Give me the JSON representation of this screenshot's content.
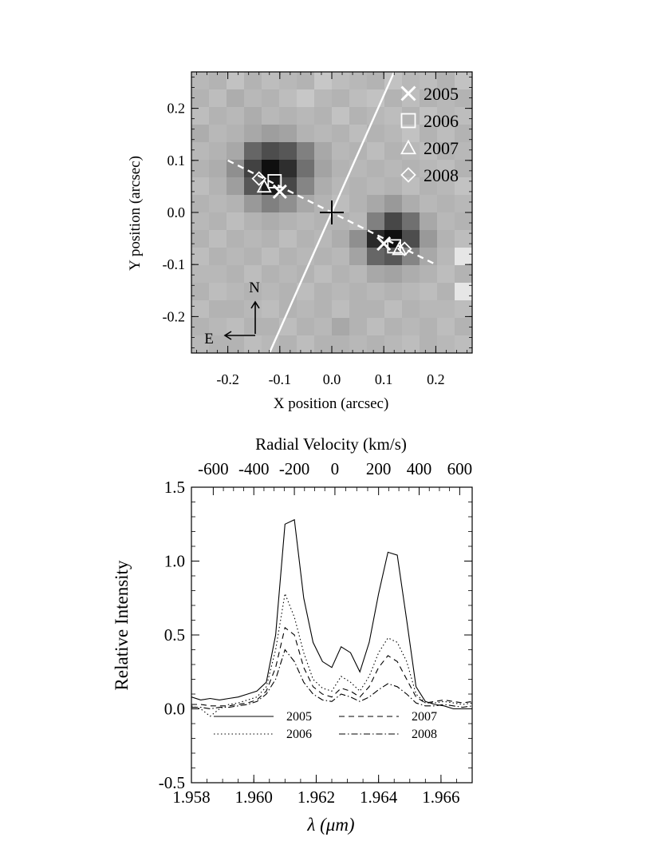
{
  "chart_data": [
    {
      "type": "heatmap",
      "xlabel": "X position (arcsec)",
      "ylabel": "Y position (arcsec)",
      "xlim": [
        -0.27,
        0.27
      ],
      "ylim": [
        -0.27,
        0.27
      ],
      "xticks": [
        -0.2,
        -0.1,
        0.0,
        0.1,
        0.2
      ],
      "xtick_labels": [
        "-0.2",
        "-0.1",
        "0.0",
        "0.1",
        "0.2"
      ],
      "yticks": [
        -0.2,
        -0.1,
        0.0,
        0.1,
        0.2
      ],
      "ytick_labels": [
        "-0.2",
        "-0.1",
        "0.0",
        "0.1",
        "0.2"
      ],
      "grid_extent": [
        -0.27,
        0.27,
        -0.27,
        0.27
      ],
      "grid_rows": 16,
      "grid_cols": 16,
      "intensity_grid": [
        [
          0.72,
          0.7,
          0.76,
          0.7,
          0.74,
          0.72,
          0.7,
          0.78,
          0.74,
          0.72,
          0.7,
          0.76,
          0.72,
          0.74,
          0.7,
          0.76
        ],
        [
          0.7,
          0.74,
          0.68,
          0.72,
          0.7,
          0.74,
          0.78,
          0.72,
          0.7,
          0.74,
          0.76,
          0.7,
          0.74,
          0.7,
          0.72,
          0.7
        ],
        [
          0.74,
          0.7,
          0.72,
          0.68,
          0.72,
          0.7,
          0.72,
          0.7,
          0.76,
          0.7,
          0.72,
          0.74,
          0.7,
          0.76,
          0.72,
          0.74
        ],
        [
          0.68,
          0.72,
          0.7,
          0.66,
          0.62,
          0.64,
          0.7,
          0.72,
          0.7,
          0.74,
          0.7,
          0.72,
          0.76,
          0.7,
          0.74,
          0.7
        ],
        [
          0.72,
          0.7,
          0.66,
          0.4,
          0.3,
          0.34,
          0.5,
          0.66,
          0.72,
          0.7,
          0.74,
          0.7,
          0.72,
          0.74,
          0.7,
          0.72
        ],
        [
          0.7,
          0.68,
          0.56,
          0.26,
          0.06,
          0.18,
          0.44,
          0.64,
          0.7,
          0.72,
          0.7,
          0.72,
          0.7,
          0.72,
          0.74,
          0.7
        ],
        [
          0.74,
          0.7,
          0.62,
          0.34,
          0.1,
          0.28,
          0.52,
          0.68,
          0.72,
          0.7,
          0.72,
          0.7,
          0.74,
          0.7,
          0.72,
          0.76
        ],
        [
          0.7,
          0.72,
          0.7,
          0.6,
          0.5,
          0.56,
          0.66,
          0.7,
          0.74,
          0.7,
          0.66,
          0.6,
          0.68,
          0.72,
          0.7,
          0.72
        ],
        [
          0.72,
          0.7,
          0.74,
          0.7,
          0.68,
          0.7,
          0.72,
          0.7,
          0.7,
          0.72,
          0.5,
          0.28,
          0.44,
          0.66,
          0.72,
          0.7
        ],
        [
          0.7,
          0.74,
          0.7,
          0.72,
          0.7,
          0.74,
          0.7,
          0.72,
          0.68,
          0.56,
          0.16,
          0.06,
          0.3,
          0.6,
          0.7,
          0.74
        ],
        [
          0.74,
          0.7,
          0.72,
          0.7,
          0.74,
          0.7,
          0.72,
          0.7,
          0.72,
          0.64,
          0.4,
          0.34,
          0.52,
          0.66,
          0.72,
          0.9
        ],
        [
          0.72,
          0.72,
          0.7,
          0.74,
          0.7,
          0.72,
          0.7,
          0.74,
          0.7,
          0.72,
          0.66,
          0.64,
          0.68,
          0.7,
          0.74,
          0.7
        ],
        [
          0.7,
          0.74,
          0.72,
          0.7,
          0.72,
          0.7,
          0.74,
          0.7,
          0.72,
          0.7,
          0.72,
          0.7,
          0.72,
          0.74,
          0.7,
          0.9
        ],
        [
          0.74,
          0.7,
          0.7,
          0.72,
          0.74,
          0.7,
          0.72,
          0.7,
          0.74,
          0.7,
          0.7,
          0.74,
          0.7,
          0.72,
          0.72,
          0.74
        ],
        [
          0.7,
          0.72,
          0.74,
          0.7,
          0.7,
          0.74,
          0.7,
          0.72,
          0.66,
          0.7,
          0.74,
          0.7,
          0.72,
          0.7,
          0.74,
          0.7
        ],
        [
          0.72,
          0.7,
          0.7,
          0.74,
          0.72,
          0.7,
          0.74,
          0.7,
          0.7,
          0.72,
          0.7,
          0.72,
          0.74,
          0.7,
          0.72,
          0.74
        ]
      ],
      "lines": [
        {
          "name": "disk axis",
          "style": "solid",
          "color": "#ffffff",
          "x": [
            -0.12,
            0.12
          ],
          "y": [
            -0.27,
            0.27
          ]
        },
        {
          "name": "position axis",
          "style": "dashed",
          "color": "#ffffff",
          "x": [
            -0.2,
            0.2
          ],
          "y": [
            0.1,
            -0.1
          ]
        }
      ],
      "center_marker": {
        "x": 0.0,
        "y": 0.0,
        "symbol": "+"
      },
      "series": [
        {
          "name": "2005",
          "symbol": "x",
          "points": [
            [
              -0.1,
              0.04
            ],
            [
              0.1,
              -0.06
            ]
          ]
        },
        {
          "name": "2006",
          "symbol": "square",
          "points": [
            [
              -0.11,
              0.06
            ],
            [
              0.12,
              -0.065
            ]
          ]
        },
        {
          "name": "2007",
          "symbol": "triangle",
          "points": [
            [
              -0.13,
              0.05
            ],
            [
              0.13,
              -0.07
            ]
          ]
        },
        {
          "name": "2008",
          "symbol": "diamond",
          "points": [
            [
              -0.14,
              0.065
            ],
            [
              0.14,
              -0.07
            ]
          ]
        }
      ],
      "compass": {
        "north": "N",
        "east": "E"
      },
      "legend": {
        "placement": "top-right",
        "entries": [
          "2005",
          "2006",
          "2007",
          "2008"
        ]
      }
    },
    {
      "type": "line",
      "xlabel": "λ (μm)",
      "ylabel": "Relative Intensity",
      "top_axis_label": "Radial Velocity (km/s)",
      "xlim": [
        1.958,
        1.967
      ],
      "ylim": [
        -0.5,
        1.5
      ],
      "xticks": [
        1.958,
        1.96,
        1.962,
        1.964,
        1.966
      ],
      "xtick_labels": [
        "1.958",
        "1.960",
        "1.962",
        "1.964",
        "1.966"
      ],
      "yticks": [
        -0.5,
        0.0,
        0.5,
        1.0,
        1.5
      ],
      "ytick_labels": [
        "-0.5",
        "0.0",
        "0.5",
        "1.0",
        "1.5"
      ],
      "top_ticks": [
        -600,
        -400,
        -200,
        0,
        200,
        400,
        600
      ],
      "top_tick_labels": [
        "-600",
        "-400",
        "-200",
        "0",
        "200",
        "400",
        "600"
      ],
      "top_tick_wavelengths": [
        1.9587,
        1.96,
        1.9613,
        1.9626,
        1.964,
        1.9653,
        1.9666
      ],
      "x": [
        1.958,
        1.9583,
        1.9586,
        1.9589,
        1.9592,
        1.9595,
        1.9598,
        1.9601,
        1.9604,
        1.9607,
        1.961,
        1.9613,
        1.9616,
        1.9619,
        1.9622,
        1.9625,
        1.9628,
        1.9631,
        1.9634,
        1.9637,
        1.964,
        1.9643,
        1.9646,
        1.9649,
        1.9652,
        1.9655,
        1.9658,
        1.9661,
        1.9664,
        1.9667,
        1.967
      ],
      "series": [
        {
          "name": "2005",
          "style": "solid",
          "values": [
            0.08,
            0.06,
            0.07,
            0.06,
            0.07,
            0.08,
            0.1,
            0.12,
            0.18,
            0.5,
            1.25,
            1.28,
            0.75,
            0.45,
            0.32,
            0.28,
            0.42,
            0.38,
            0.25,
            0.45,
            0.78,
            1.06,
            1.04,
            0.6,
            0.15,
            0.05,
            0.03,
            0.02,
            0.0,
            0.0,
            0.0
          ]
        },
        {
          "name": "2006",
          "style": "dotted",
          "values": [
            0.02,
            0.0,
            -0.05,
            0.0,
            0.03,
            0.04,
            0.06,
            0.08,
            0.15,
            0.4,
            0.78,
            0.62,
            0.38,
            0.2,
            0.14,
            0.12,
            0.22,
            0.18,
            0.12,
            0.22,
            0.38,
            0.48,
            0.45,
            0.32,
            0.1,
            0.04,
            0.04,
            0.05,
            0.04,
            0.03,
            0.04
          ]
        },
        {
          "name": "2007",
          "style": "dashed",
          "values": [
            0.03,
            0.03,
            0.02,
            0.02,
            0.02,
            0.03,
            0.04,
            0.06,
            0.12,
            0.28,
            0.55,
            0.5,
            0.28,
            0.15,
            0.1,
            0.08,
            0.14,
            0.12,
            0.08,
            0.15,
            0.28,
            0.36,
            0.32,
            0.2,
            0.08,
            0.04,
            0.05,
            0.06,
            0.05,
            0.04,
            0.05
          ]
        },
        {
          "name": "2008",
          "style": "dash-dot",
          "values": [
            0.01,
            0.01,
            0.0,
            0.01,
            0.01,
            0.02,
            0.03,
            0.05,
            0.1,
            0.2,
            0.4,
            0.32,
            0.18,
            0.1,
            0.06,
            0.05,
            0.1,
            0.08,
            0.05,
            0.08,
            0.13,
            0.17,
            0.15,
            0.1,
            0.04,
            0.02,
            0.02,
            0.03,
            0.02,
            0.01,
            0.02
          ]
        }
      ],
      "legend": {
        "placement": "bottom-center",
        "entries": [
          "2005",
          "2006",
          "2007",
          "2008"
        ]
      }
    }
  ]
}
